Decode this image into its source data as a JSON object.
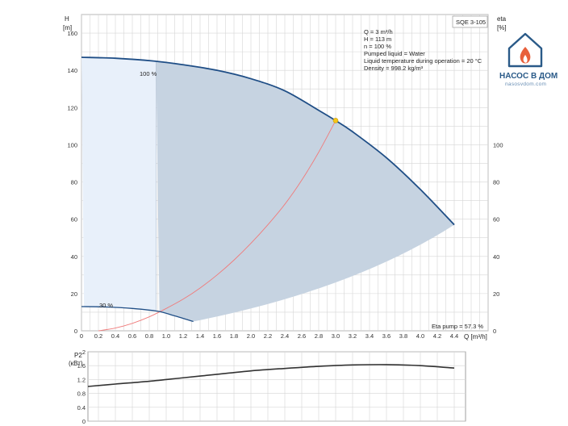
{
  "chart_data": [
    {
      "type": "line",
      "title": "SQE 3-105",
      "xlabel": "Q [m³/h]",
      "ylabel_left": [
        "H",
        "[m]"
      ],
      "ylabel_right": [
        "eta",
        "[%]"
      ],
      "xlim": [
        0,
        4.8
      ],
      "ylim": [
        0,
        170
      ],
      "x_ticks": [
        "0",
        "0.2",
        "0.4",
        "0.6",
        "0.8",
        "1.0",
        "1.2",
        "1.4",
        "1.6",
        "1.8",
        "2.0",
        "2.2",
        "2.4",
        "2.6",
        "2.8",
        "3.0",
        "3.2",
        "3.4",
        "3.6",
        "3.8",
        "4.0",
        "4.2",
        "4.4"
      ],
      "y_ticks_left": [
        "0",
        "20",
        "40",
        "60",
        "80",
        "100",
        "120",
        "140",
        "160"
      ],
      "y_ticks_right": [
        "0",
        "20",
        "40",
        "60",
        "80",
        "100"
      ],
      "grid": true,
      "info_lines": [
        "Q = 3 m³/h",
        "H = 113 m",
        "n = 100 %",
        "Pumped liquid = Water",
        "Liquid temperature during operation = 20 °C",
        "Density = 998.2 kg/m³"
      ],
      "curve_labels": [
        "100 %",
        "30 %"
      ],
      "eta_note": "Eta pump = 57.3 %",
      "series": [
        {
          "name": "100 %",
          "x": [
            0,
            0.4,
            0.85,
            1.2,
            1.6,
            2.0,
            2.4,
            2.8,
            3.0,
            3.2,
            3.6,
            4.0,
            4.4
          ],
          "values": [
            147,
            146.5,
            145,
            143,
            140,
            135.5,
            129,
            118.5,
            113,
            107,
            93,
            76,
            57
          ]
        },
        {
          "name": "30 %",
          "x": [
            0,
            0.3,
            0.6,
            0.9,
            1.1,
            1.32
          ],
          "values": [
            13,
            12.8,
            12,
            10.5,
            8,
            5
          ]
        },
        {
          "name": "eta",
          "x": [
            0.2,
            0.4,
            0.6,
            0.8,
            1.0,
            1.2,
            1.4,
            1.6,
            1.8,
            2.0,
            2.2,
            2.4,
            2.6,
            2.8,
            3.0
          ],
          "values": [
            0,
            1.5,
            4,
            7.5,
            12,
            17,
            23,
            30,
            38,
            47,
            57,
            68,
            81,
            96,
            113
          ]
        }
      ],
      "operating_point": {
        "x": 3.0,
        "y": 113
      },
      "colors": {
        "curve": "#1f4e86",
        "eta": "#f07b7b",
        "area_dark": "#c6d3e1",
        "area_light": "#e8f0fa",
        "point": "#f5c518"
      }
    },
    {
      "type": "line",
      "ylabel": [
        "P2",
        "(кВт)"
      ],
      "xlim": [
        0,
        4.8
      ],
      "ylim": [
        0,
        2
      ],
      "y_ticks": [
        "0",
        "0.4",
        "0.8",
        "1.2",
        "1.6",
        "2"
      ],
      "series": [
        {
          "name": "P2",
          "x": [
            0,
            0.4,
            0.8,
            1.2,
            1.6,
            2.0,
            2.4,
            2.8,
            3.2,
            3.6,
            4.0,
            4.4
          ],
          "values": [
            1.0,
            1.07,
            1.15,
            1.25,
            1.35,
            1.45,
            1.52,
            1.58,
            1.62,
            1.63,
            1.6,
            1.53
          ]
        }
      ],
      "colors": {
        "curve": "#333333"
      }
    }
  ],
  "brand": {
    "name": "НАСОС В ДОМ",
    "site": "nasosvdom.com",
    "colors": {
      "house": "#2a5a88",
      "flame": "#e8603c"
    }
  }
}
